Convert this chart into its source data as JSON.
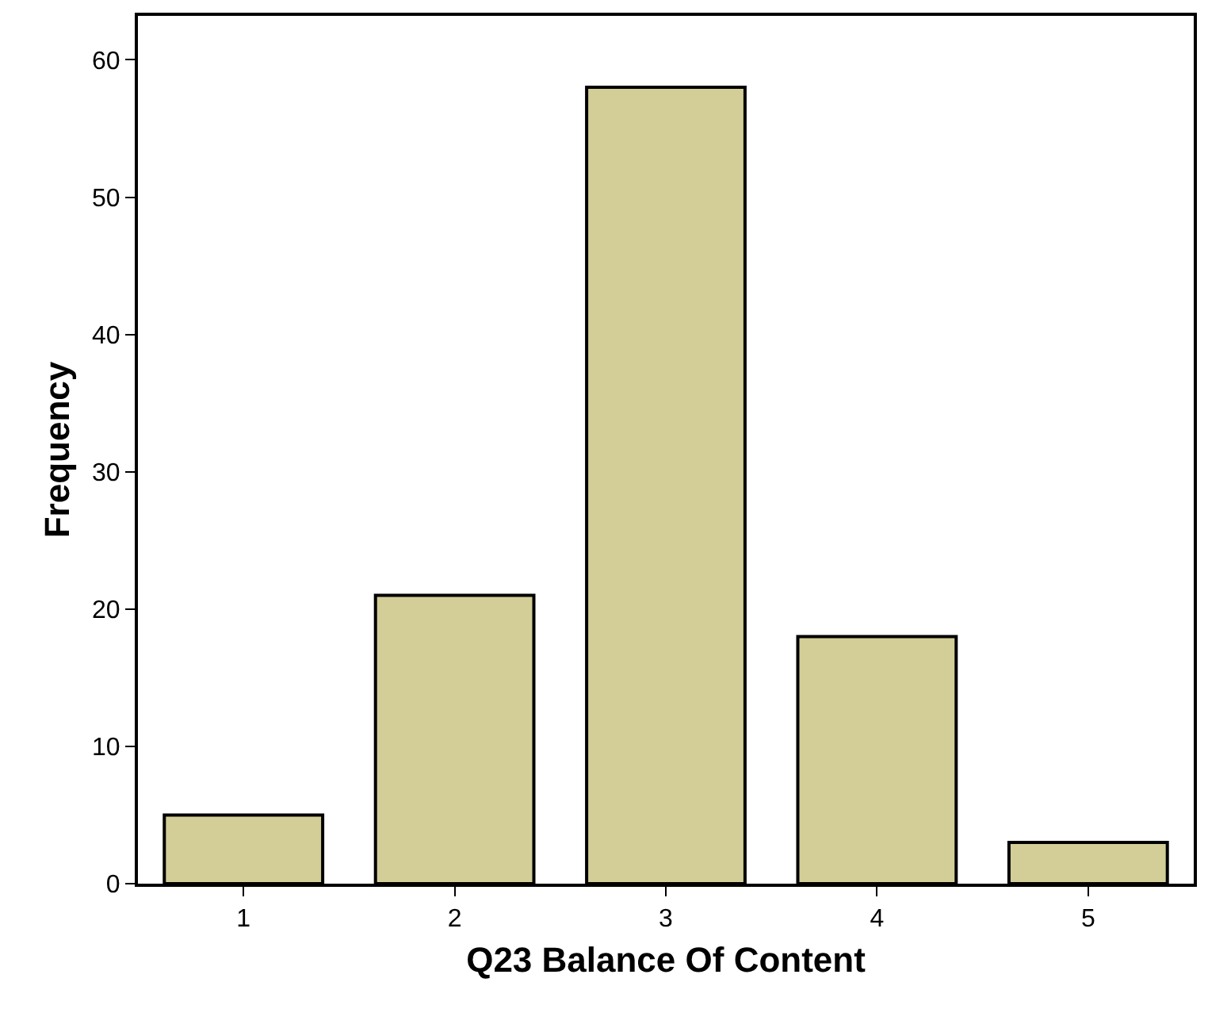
{
  "chart_data": {
    "type": "bar",
    "xlabel": "Q23 Balance Of Content",
    "ylabel": "Frequency",
    "categories": [
      "1",
      "2",
      "3",
      "4",
      "5"
    ],
    "values": [
      5,
      21,
      58,
      18,
      3
    ],
    "color": "#d3ce97",
    "ylim": [
      0,
      63.2
    ],
    "yticks": [
      0,
      10,
      20,
      30,
      40,
      50,
      60
    ]
  }
}
